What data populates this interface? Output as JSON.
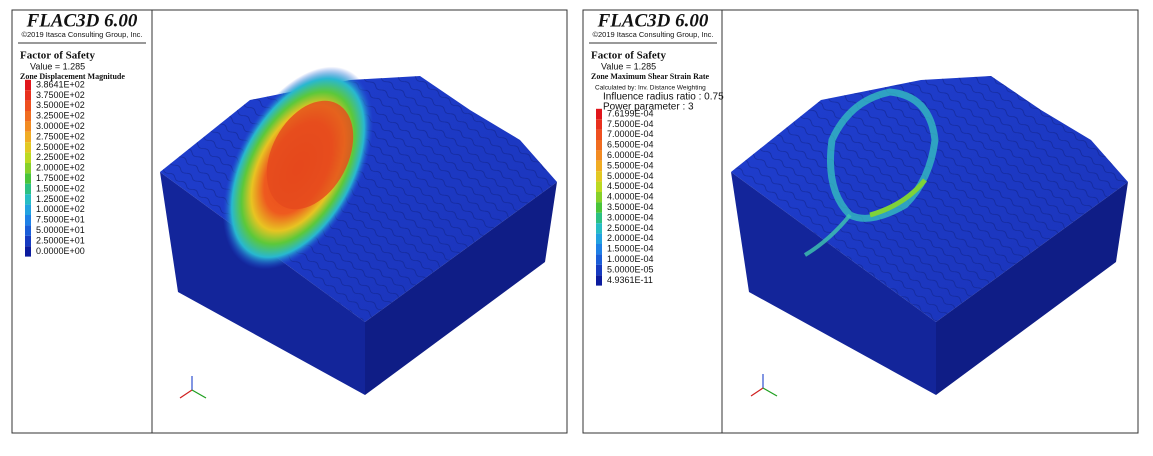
{
  "panels": [
    {
      "header": {
        "title": "FLAC3D 6.00",
        "copyright": "©2019 Itasca Consulting Group, Inc."
      },
      "plot": {
        "title": "Factor of Safety",
        "value": "Value = 1.285",
        "contour": "Zone Displacement Magnitude",
        "notes": []
      },
      "legend": [
        {
          "label": "3.8641E+02",
          "color": "#e0151b"
        },
        {
          "label": "3.7500E+02",
          "color": "#e8301d"
        },
        {
          "label": "3.5000E+02",
          "color": "#ee4f1f"
        },
        {
          "label": "3.2500E+02",
          "color": "#f06c20"
        },
        {
          "label": "3.0000E+02",
          "color": "#f28b22"
        },
        {
          "label": "2.7500E+02",
          "color": "#f0ac24"
        },
        {
          "label": "2.5000E+02",
          "color": "#e2c823"
        },
        {
          "label": "2.2500E+02",
          "color": "#bcd922"
        },
        {
          "label": "2.0000E+02",
          "color": "#86d02a"
        },
        {
          "label": "1.7500E+02",
          "color": "#49c43a"
        },
        {
          "label": "1.5000E+02",
          "color": "#2cc083"
        },
        {
          "label": "1.2500E+02",
          "color": "#27bdc4"
        },
        {
          "label": "1.0000E+02",
          "color": "#22a2e0"
        },
        {
          "label": "7.5000E+01",
          "color": "#1e80e6"
        },
        {
          "label": "5.0000E+01",
          "color": "#1a5dd8"
        },
        {
          "label": "2.5000E+01",
          "color": "#163ac0"
        },
        {
          "label": "0.0000E+00",
          "color": "#0b1b9e"
        }
      ]
    },
    {
      "header": {
        "title": "FLAC3D 6.00",
        "copyright": "©2019 Itasca Consulting Group, Inc."
      },
      "plot": {
        "title": "Factor of Safety",
        "value": "Value = 1.285",
        "contour": "Zone Maximum Shear Strain Rate",
        "notes": [
          "Calculated by: Inv. Distance Weighting",
          "Influence radius ratio : 0.75",
          "Power parameter     : 3"
        ]
      },
      "legend": [
        {
          "label": "7.6199E-04",
          "color": "#e0151b"
        },
        {
          "label": "7.5000E-04",
          "color": "#e8301d"
        },
        {
          "label": "7.0000E-04",
          "color": "#ee4f1f"
        },
        {
          "label": "6.5000E-04",
          "color": "#f06c20"
        },
        {
          "label": "6.0000E-04",
          "color": "#f28b22"
        },
        {
          "label": "5.5000E-04",
          "color": "#f0ac24"
        },
        {
          "label": "5.0000E-04",
          "color": "#e2c823"
        },
        {
          "label": "4.5000E-04",
          "color": "#bcd922"
        },
        {
          "label": "4.0000E-04",
          "color": "#86d02a"
        },
        {
          "label": "3.5000E-04",
          "color": "#49c43a"
        },
        {
          "label": "3.0000E-04",
          "color": "#2cc083"
        },
        {
          "label": "2.5000E-04",
          "color": "#27bdc4"
        },
        {
          "label": "2.0000E-04",
          "color": "#22a2e0"
        },
        {
          "label": "1.5000E-04",
          "color": "#1e80e6"
        },
        {
          "label": "1.0000E-04",
          "color": "#1a5dd8"
        },
        {
          "label": "5.0000E-05",
          "color": "#163ac0"
        },
        {
          "label": "4.9361E-11",
          "color": "#0b1b9e"
        }
      ]
    }
  ]
}
